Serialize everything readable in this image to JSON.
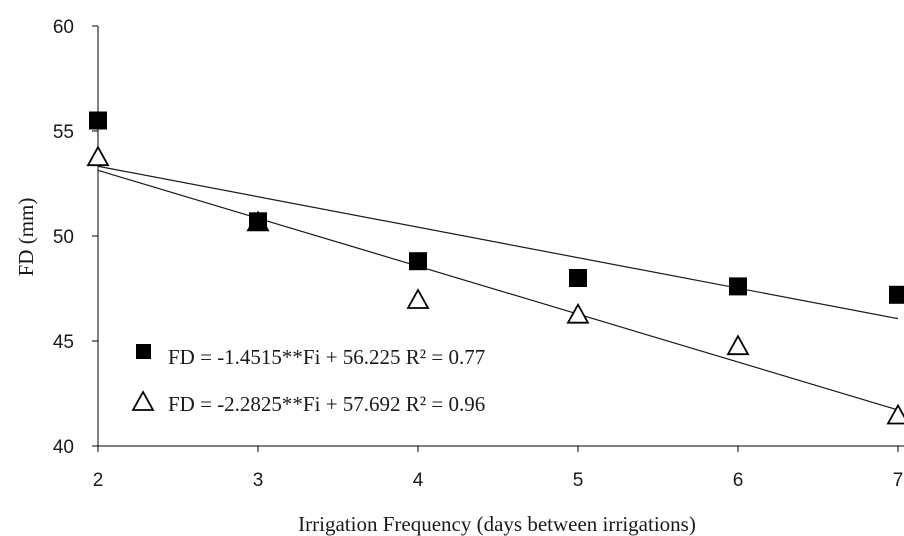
{
  "chart_data": {
    "type": "scatter",
    "xlabel": "Irrigation Frequency (days between irrigations)",
    "ylabel": "FD (mm)",
    "xlim": [
      2,
      7
    ],
    "ylim": [
      40,
      60
    ],
    "xticks": [
      "2",
      "3",
      "4",
      "5",
      "6",
      "7"
    ],
    "yticks": [
      "40",
      "45",
      "50",
      "55",
      "60"
    ],
    "series": [
      {
        "marker": "filled-square",
        "color": "#000000",
        "x": [
          2,
          3,
          4,
          5,
          6,
          7
        ],
        "y": [
          55.5,
          50.7,
          48.8,
          48.0,
          47.6,
          47.2
        ],
        "trendline": {
          "slope": -1.4515,
          "intercept": 56.225
        },
        "equation": "FD = -1.4515**Fi + 56.225",
        "r2": "R² = 0.77"
      },
      {
        "marker": "open-triangle",
        "color": "#000000",
        "x": [
          2,
          3,
          4,
          5,
          6,
          7
        ],
        "y": [
          53.8,
          50.7,
          47.0,
          46.3,
          44.8,
          41.5
        ],
        "trendline": {
          "slope": -2.2825,
          "intercept": 57.692
        },
        "equation": "FD = -2.2825**Fi + 57.692",
        "r2": "R² = 0.96"
      }
    ],
    "legend_position": "bottom-left",
    "grid": false
  }
}
